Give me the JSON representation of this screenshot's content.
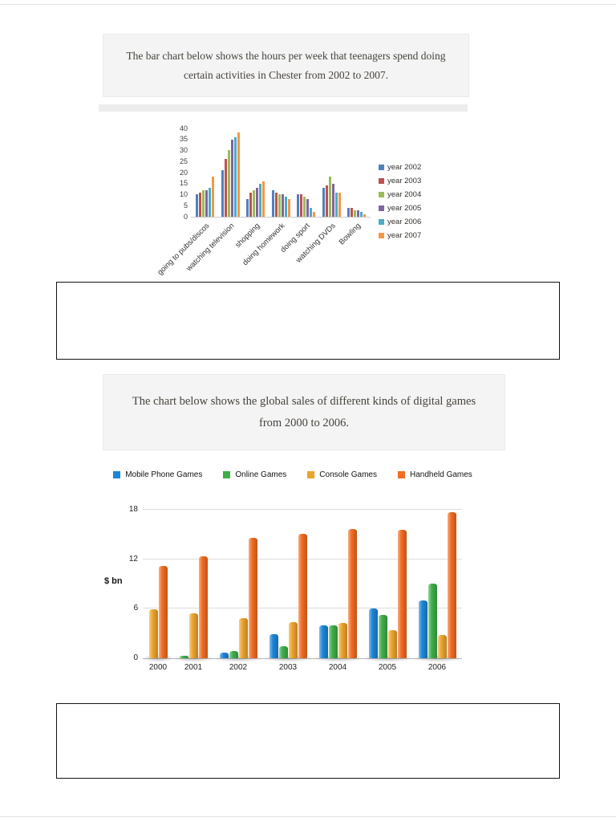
{
  "chart_data": [
    {
      "type": "bar",
      "title": "The bar chart below shows the hours per week that teenagers spend doing certain activities in Chester from 2002 to 2007.",
      "categories": [
        "going to pubs/discos",
        "watching television",
        "shopping",
        "doing homework",
        "doing sport",
        "watching DVDs",
        "Bowling"
      ],
      "series": [
        {
          "name": "year 2002",
          "color": "#4F81BD",
          "values": [
            10,
            21,
            8,
            12,
            10,
            13,
            4
          ]
        },
        {
          "name": "year 2003",
          "color": "#C0504D",
          "values": [
            11,
            26,
            11,
            11,
            10,
            14,
            4
          ]
        },
        {
          "name": "year 2004",
          "color": "#9BBB59",
          "values": [
            12,
            30,
            12,
            10,
            9,
            18,
            3
          ]
        },
        {
          "name": "year 2005",
          "color": "#8064A2",
          "values": [
            12,
            35,
            13,
            10,
            8,
            15,
            3
          ]
        },
        {
          "name": "year 2006",
          "color": "#4BACC6",
          "values": [
            13,
            36,
            15,
            9,
            4,
            11,
            2
          ]
        },
        {
          "name": "year 2007",
          "color": "#F79646",
          "values": [
            18,
            38,
            16,
            8,
            2,
            11,
            1
          ]
        }
      ],
      "xlabel": "",
      "ylabel": "",
      "ylim": [
        0,
        40
      ],
      "yticks": [
        0,
        5,
        10,
        15,
        20,
        25,
        30,
        35,
        40
      ],
      "grid": false,
      "legend_position": "right"
    },
    {
      "type": "bar",
      "title": "The chart below shows the global sales of different kinds of digital games from 2000 to 2006.",
      "categories": [
        "2000",
        "2001",
        "2002",
        "2003",
        "2004",
        "2005",
        "2006"
      ],
      "series": [
        {
          "name": "Mobile Phone Games",
          "color": "#1d86d8",
          "values": [
            null,
            null,
            0.7,
            2.9,
            4.0,
            6.0,
            7.0
          ]
        },
        {
          "name": "Online Games",
          "color": "#3fae49",
          "values": [
            null,
            0.3,
            0.9,
            1.5,
            4.0,
            5.3,
            9.0
          ]
        },
        {
          "name": "Console Games",
          "color": "#eda42b",
          "values": [
            5.9,
            5.4,
            4.9,
            4.4,
            4.3,
            3.4,
            2.8
          ]
        },
        {
          "name": "Handheld Games",
          "color": "#f26c22",
          "values": [
            11.2,
            12.4,
            14.6,
            15.1,
            15.7,
            15.6,
            17.7
          ]
        }
      ],
      "xlabel": "",
      "ylabel": "$ bn",
      "ylim": [
        0,
        18
      ],
      "yticks": [
        0,
        6,
        12,
        18
      ],
      "grid": true,
      "legend_position": "top"
    }
  ]
}
